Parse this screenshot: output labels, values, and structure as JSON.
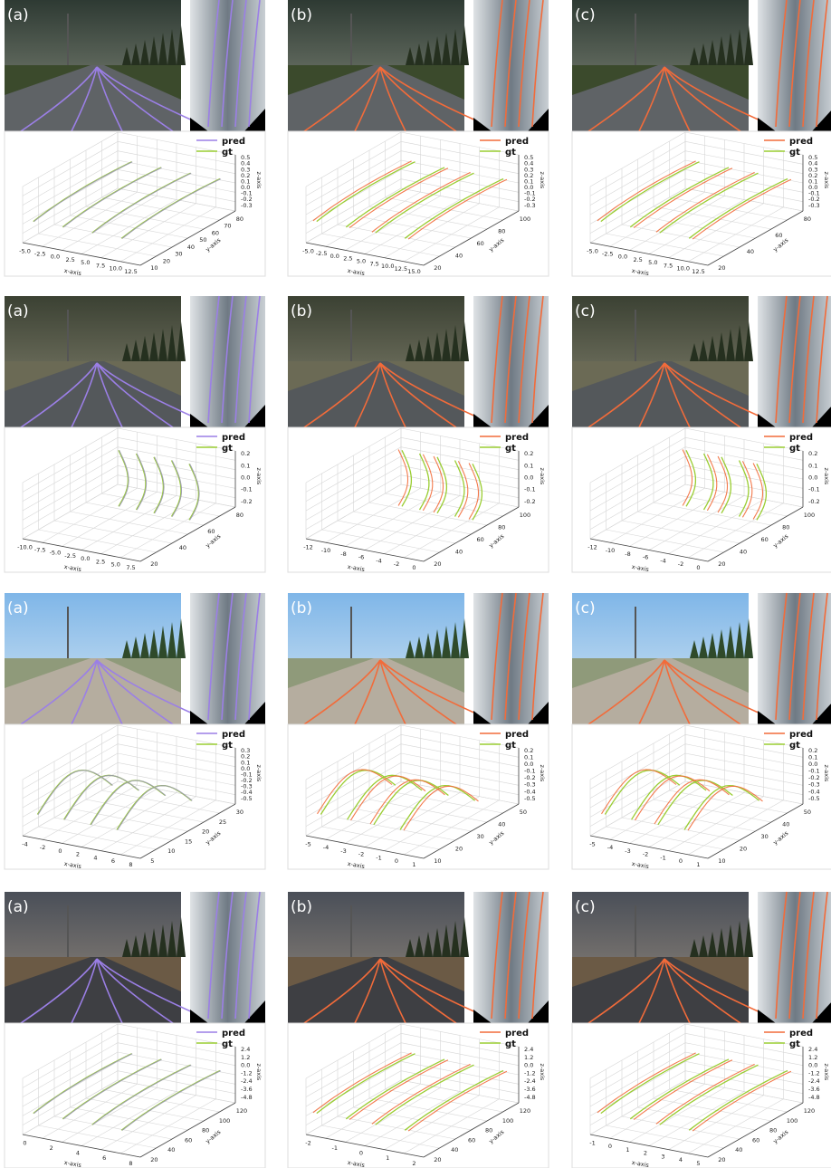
{
  "rows": [
    {
      "panels": [
        {
          "label": "(a)",
          "legend": [
            "pred",
            "gt"
          ],
          "x_axis_label": "x-axis",
          "y_axis_label": "y-axis",
          "z_axis_label": "z-axis",
          "xticks": [
            "-5.0",
            "-2.5",
            "0.0",
            "2.5",
            "5.0",
            "7.5",
            "10.0",
            "12.5"
          ],
          "yticks": [
            "10",
            "20",
            "30",
            "40",
            "50",
            "60",
            "70",
            "80"
          ],
          "zticks": [
            "0.5",
            "0.4",
            "0.3",
            "0.2",
            "0.1",
            "0.0",
            "-0.1",
            "-0.2",
            "-0.3"
          ]
        },
        {
          "label": "(b)",
          "legend": [
            "pred",
            "gt"
          ],
          "x_axis_label": "x-axis",
          "y_axis_label": "y-axis",
          "z_axis_label": "z-axis",
          "xticks": [
            "-5.0",
            "-2.5",
            "0.0",
            "2.5",
            "5.0",
            "7.5",
            "10.0",
            "12.5",
            "15.0"
          ],
          "yticks": [
            "20",
            "40",
            "60",
            "80",
            "100"
          ],
          "zticks": [
            "0.5",
            "0.4",
            "0.3",
            "0.2",
            "0.1",
            "0.0",
            "-0.1",
            "-0.2",
            "-0.3"
          ]
        },
        {
          "label": "(c)",
          "legend": [
            "pred",
            "gt"
          ],
          "x_axis_label": "x-axis",
          "y_axis_label": "y-axis",
          "z_axis_label": "z-axis",
          "xticks": [
            "-5.0",
            "-2.5",
            "0.0",
            "2.5",
            "5.0",
            "7.5",
            "10.0",
            "12.5"
          ],
          "yticks": [
            "20",
            "40",
            "60",
            "80"
          ],
          "zticks": [
            "0.5",
            "0.4",
            "0.3",
            "0.2",
            "0.1",
            "0.0",
            "-0.1",
            "-0.2",
            "-0.3"
          ]
        }
      ]
    },
    {
      "panels": [
        {
          "label": "(a)",
          "legend": [
            "pred",
            "gt"
          ],
          "x_axis_label": "x-axis",
          "y_axis_label": "y-axis",
          "z_axis_label": "z-axis",
          "xticks": [
            "-10.0",
            "-7.5",
            "-5.0",
            "-2.5",
            "0.0",
            "2.5",
            "5.0",
            "7.5"
          ],
          "yticks": [
            "20",
            "40",
            "60",
            "80"
          ],
          "zticks": [
            "0.2",
            "0.1",
            "0.0",
            "-0.1",
            "-0.2"
          ]
        },
        {
          "label": "(b)",
          "legend": [
            "pred",
            "gt"
          ],
          "x_axis_label": "x-axis",
          "y_axis_label": "y-axis",
          "z_axis_label": "z-axis",
          "xticks": [
            "-12",
            "-10",
            "-8",
            "-6",
            "-4",
            "-2",
            "0"
          ],
          "yticks": [
            "20",
            "40",
            "60",
            "80",
            "100"
          ],
          "zticks": [
            "0.2",
            "0.1",
            "0.0",
            "-0.1",
            "-0.2"
          ]
        },
        {
          "label": "(c)",
          "legend": [
            "pred",
            "gt"
          ],
          "x_axis_label": "x-axis",
          "y_axis_label": "y-axis",
          "z_axis_label": "z-axis",
          "xticks": [
            "-12",
            "-10",
            "-8",
            "-6",
            "-4",
            "-2",
            "0"
          ],
          "yticks": [
            "20",
            "40",
            "60",
            "80",
            "100"
          ],
          "zticks": [
            "0.2",
            "0.1",
            "0.0",
            "-0.1",
            "-0.2"
          ]
        }
      ]
    },
    {
      "panels": [
        {
          "label": "(a)",
          "legend": [
            "pred",
            "gt"
          ],
          "x_axis_label": "x-axis",
          "y_axis_label": "y-axis",
          "z_axis_label": "z-axis",
          "xticks": [
            "-4",
            "-2",
            "0",
            "2",
            "4",
            "6",
            "8"
          ],
          "yticks": [
            "5",
            "10",
            "15",
            "20",
            "25",
            "30"
          ],
          "zticks": [
            "0.3",
            "0.2",
            "0.1",
            "0.0",
            "-0.1",
            "-0.2",
            "-0.3",
            "-0.4",
            "-0.5"
          ]
        },
        {
          "label": "(b)",
          "legend": [
            "pred",
            "gt"
          ],
          "x_axis_label": "x-axis",
          "y_axis_label": "y-axis",
          "z_axis_label": "z-axis",
          "xticks": [
            "-5",
            "-4",
            "-3",
            "-2",
            "-1",
            "0",
            "1"
          ],
          "yticks": [
            "10",
            "20",
            "30",
            "40",
            "50"
          ],
          "zticks": [
            "0.2",
            "0.1",
            "0.0",
            "-0.1",
            "-0.2",
            "-0.3",
            "-0.4",
            "-0.5"
          ]
        },
        {
          "label": "(c)",
          "legend": [
            "pred",
            "gt"
          ],
          "x_axis_label": "x-axis",
          "y_axis_label": "y-axis",
          "z_axis_label": "z-axis",
          "xticks": [
            "-5",
            "-4",
            "-3",
            "-2",
            "-1",
            "0",
            "1"
          ],
          "yticks": [
            "10",
            "20",
            "30",
            "40",
            "50"
          ],
          "zticks": [
            "0.2",
            "0.1",
            "0.0",
            "-0.1",
            "-0.2",
            "-0.3",
            "-0.4",
            "-0.5"
          ]
        }
      ]
    },
    {
      "panels": [
        {
          "label": "(a)",
          "legend": [
            "pred",
            "gt"
          ],
          "x_axis_label": "x-axis",
          "y_axis_label": "y-axis",
          "z_axis_label": "z-axis",
          "xticks": [
            "0",
            "2",
            "4",
            "6",
            "8"
          ],
          "yticks": [
            "20",
            "40",
            "60",
            "80",
            "100",
            "120"
          ],
          "zticks": [
            "2.4",
            "1.2",
            "0.0",
            "-1.2",
            "-2.4",
            "-3.6",
            "-4.8"
          ]
        },
        {
          "label": "(b)",
          "legend": [
            "pred",
            "gt"
          ],
          "x_axis_label": "x-axis",
          "y_axis_label": "y-axis",
          "z_axis_label": "z-axis",
          "xticks": [
            "-2",
            "-1",
            "0",
            "1",
            "2"
          ],
          "yticks": [
            "20",
            "40",
            "60",
            "80",
            "100",
            "120"
          ],
          "zticks": [
            "2.4",
            "1.2",
            "0.0",
            "-1.2",
            "-2.4",
            "-3.6",
            "-4.8"
          ]
        },
        {
          "label": "(c)",
          "legend": [
            "pred",
            "gt"
          ],
          "x_axis_label": "x-axis",
          "y_axis_label": "y-axis",
          "z_axis_label": "z-axis",
          "xticks": [
            "-1",
            "0",
            "1",
            "2",
            "3",
            "4",
            "5"
          ],
          "yticks": [
            "20",
            "40",
            "60",
            "80",
            "100",
            "120"
          ],
          "zticks": [
            "2.4",
            "1.2",
            "0.0",
            "-1.2",
            "-2.4",
            "-3.6",
            "-4.8"
          ]
        }
      ]
    }
  ]
}
